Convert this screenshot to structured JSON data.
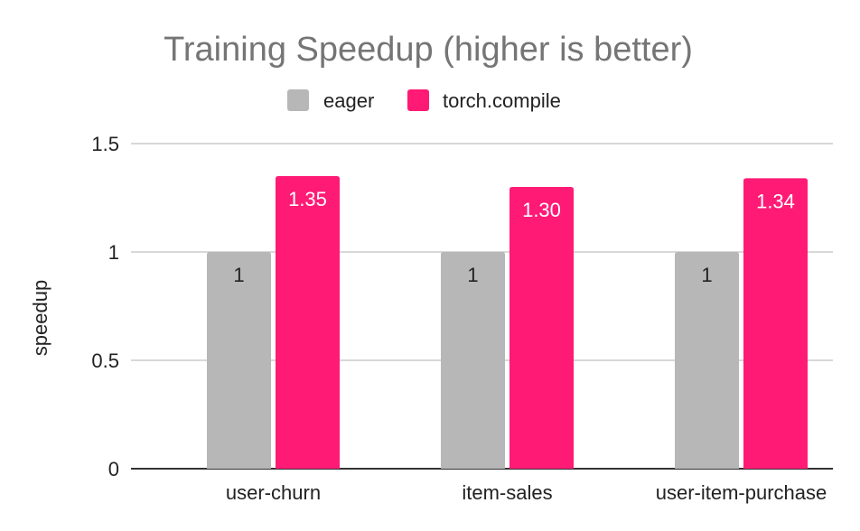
{
  "chart_data": {
    "type": "bar",
    "title": "Training Speedup (higher is better)",
    "xlabel": "",
    "ylabel": "speedup",
    "ylim": [
      0,
      1.5
    ],
    "yticks": [
      0,
      0.5,
      1,
      1.5
    ],
    "ytick_labels": [
      "0",
      "0.5",
      "1",
      "1.5"
    ],
    "categories": [
      "user-churn",
      "item-sales",
      "user-item-purchase"
    ],
    "series": [
      {
        "name": "eager",
        "color": "#b7b7b7",
        "label_color": "#222222",
        "values": [
          1,
          1,
          1
        ],
        "data_labels": [
          "1",
          "1",
          "1"
        ]
      },
      {
        "name": "torch.compile",
        "color": "#ff1a75",
        "label_color": "#ffffff",
        "values": [
          1.35,
          1.3,
          1.34
        ],
        "data_labels": [
          "1.35",
          "1.30",
          "1.34"
        ]
      }
    ],
    "grid": true,
    "legend_position": "top"
  }
}
